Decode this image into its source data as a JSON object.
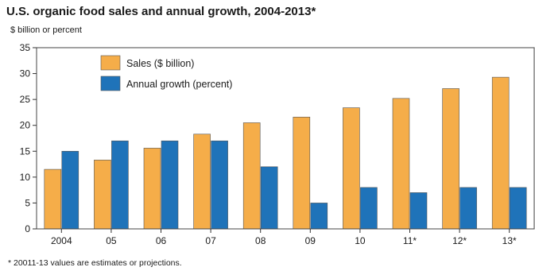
{
  "colors": {
    "sales": "#f5ad49",
    "growth": "#1f73b9",
    "axis": "#333333",
    "frame": "#444444"
  },
  "chart_data": {
    "type": "bar",
    "title": "U.S. organic food sales and annual growth, 2004-2013*",
    "ylabel": "$ billion or percent",
    "xlabel": "",
    "footnote": "* 20011-13 values are estimates or projections.",
    "ylim": [
      0,
      35
    ],
    "yticks": [
      0,
      5,
      10,
      15,
      20,
      25,
      30,
      35
    ],
    "grid": false,
    "legend_position": "top-left",
    "categories": [
      "2004",
      "05",
      "06",
      "07",
      "08",
      "09",
      "10",
      "11*",
      "12*",
      "13*"
    ],
    "series": [
      {
        "name": "Sales ($ billion)",
        "color": "#f5ad49",
        "values": [
          11.5,
          13.3,
          15.6,
          18.3,
          20.5,
          21.6,
          23.4,
          25.2,
          27.1,
          29.3
        ]
      },
      {
        "name": "Annual growth (percent)",
        "color": "#1f73b9",
        "values": [
          15,
          17,
          17,
          17,
          12,
          5,
          8,
          7,
          8,
          8
        ]
      }
    ]
  }
}
